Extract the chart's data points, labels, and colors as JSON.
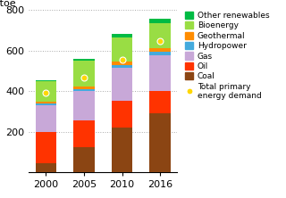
{
  "years": [
    "2000",
    "2005",
    "2010",
    "2016"
  ],
  "categories": [
    "Coal",
    "Oil",
    "Gas",
    "Hydropower",
    "Geothermal",
    "Bioenergy",
    "Other renewables"
  ],
  "colors": [
    "#8B4513",
    "#FF3300",
    "#C8A8D8",
    "#44AADD",
    "#FF8C00",
    "#99DD44",
    "#00BB44"
  ],
  "values": {
    "Coal": [
      45,
      125,
      220,
      290
    ],
    "Oil": [
      155,
      130,
      130,
      110
    ],
    "Gas": [
      130,
      145,
      165,
      175
    ],
    "Hydropower": [
      8,
      10,
      15,
      20
    ],
    "Geothermal": [
      10,
      12,
      15,
      18
    ],
    "Bioenergy": [
      100,
      130,
      120,
      120
    ],
    "Other renewables": [
      5,
      8,
      15,
      25
    ]
  },
  "total_primary": [
    390,
    465,
    555,
    648
  ],
  "ylabel": "Mtoe",
  "ylim": [
    0,
    800
  ],
  "yticks": [
    200,
    400,
    600,
    800
  ],
  "grid_color": "#AAAAAA",
  "bar_width": 0.55,
  "marker_color": "#FFD700",
  "marker_edge": "#FFFFFF",
  "legend_fontsize": 6.5,
  "axis_fontsize": 8
}
